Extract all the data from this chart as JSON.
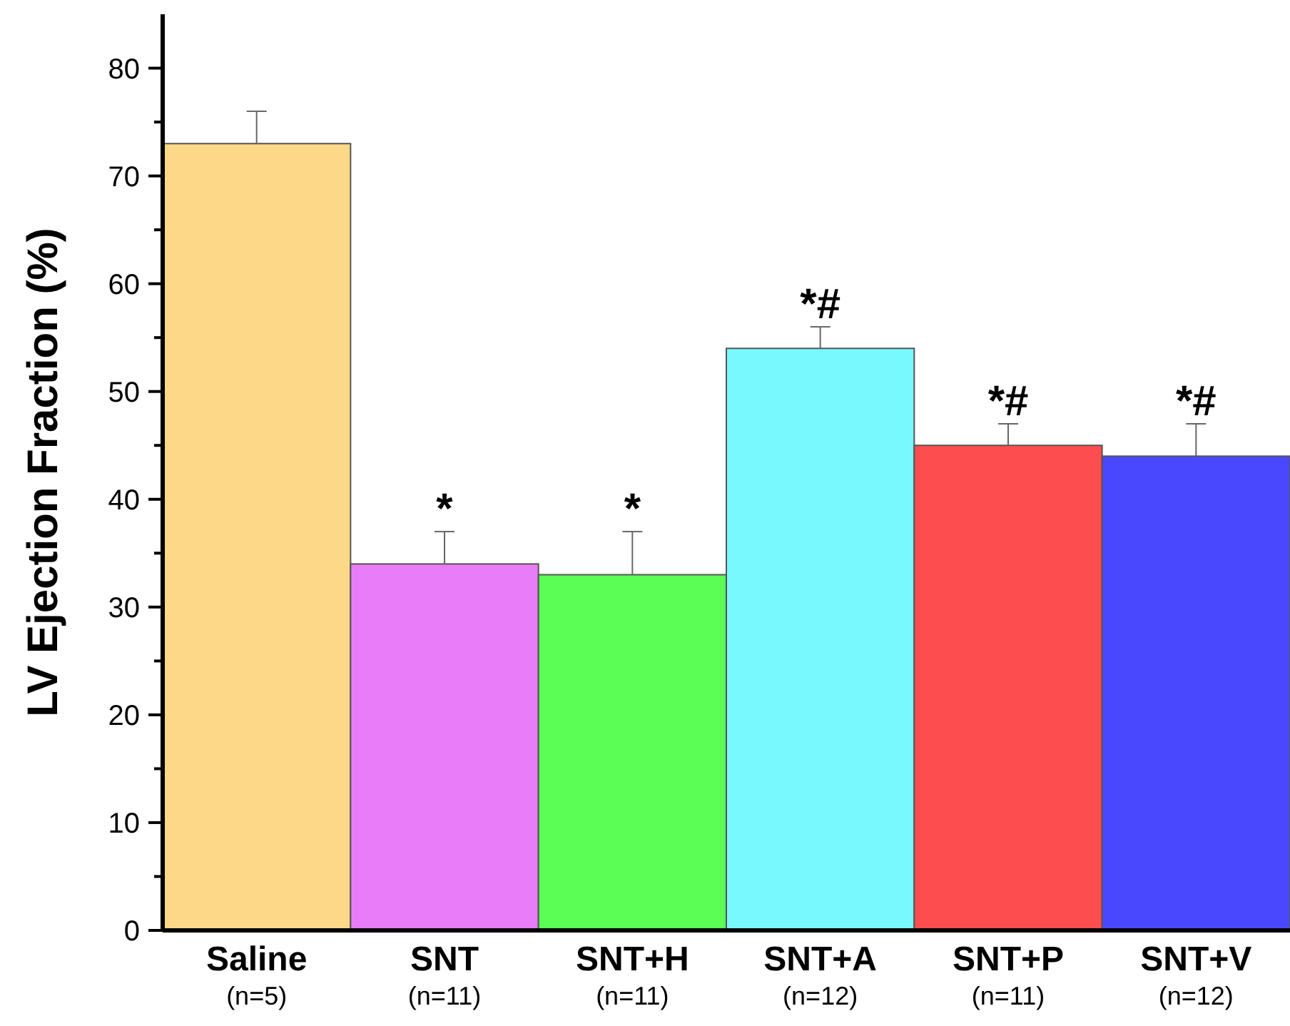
{
  "chart_data": {
    "type": "bar",
    "ylabel": "LV Ejection Fraction (%)",
    "categories": [
      "Saline\n(n=5)",
      "SNT\n(n=11)",
      "SNT+H\n(n=11)",
      "SNT+A\n(n=12)",
      "SNT+P\n(n=11)",
      "SNT+V\n(n=12)"
    ],
    "values": [
      73,
      34,
      33,
      54,
      45,
      44
    ],
    "colors": [
      "#fdd888",
      "#e97cf8",
      "#5bfe54",
      "#78f9fd",
      "#fe4d4f",
      "#4a48fe"
    ],
    "errors": [
      [
        73,
        76
      ],
      [
        34,
        37
      ],
      [
        33,
        37
      ],
      [
        54,
        56
      ],
      [
        45,
        47
      ],
      [
        44,
        47
      ]
    ],
    "ylim": [
      0,
      85
    ],
    "yticks": [
      0,
      {
        "value": 5,
        "label": null
      },
      10,
      {
        "value": 15,
        "label": null
      },
      20,
      {
        "value": 25,
        "label": null
      },
      30,
      {
        "value": 35,
        "label": null
      },
      40,
      {
        "value": 45,
        "label": null
      },
      50,
      {
        "value": 55,
        "label": null
      },
      60,
      {
        "value": 65,
        "label": null
      },
      70,
      {
        "value": 75,
        "label": null
      },
      80
    ],
    "grid": false,
    "annotations": [
      {
        "text": "*",
        "x": "SNT\n(n=11)",
        "y": 37
      },
      {
        "text": "*",
        "x": "SNT+H\n(n=11)",
        "y": 37
      },
      {
        "text": "*#",
        "x": "SNT+A\n(n=12)",
        "y": 56
      },
      {
        "text": "*#",
        "x": "SNT+P\n(n=11)",
        "y": 47
      },
      {
        "text": "*#",
        "x": "SNT+V\n(n=12)",
        "y": 47
      }
    ]
  }
}
